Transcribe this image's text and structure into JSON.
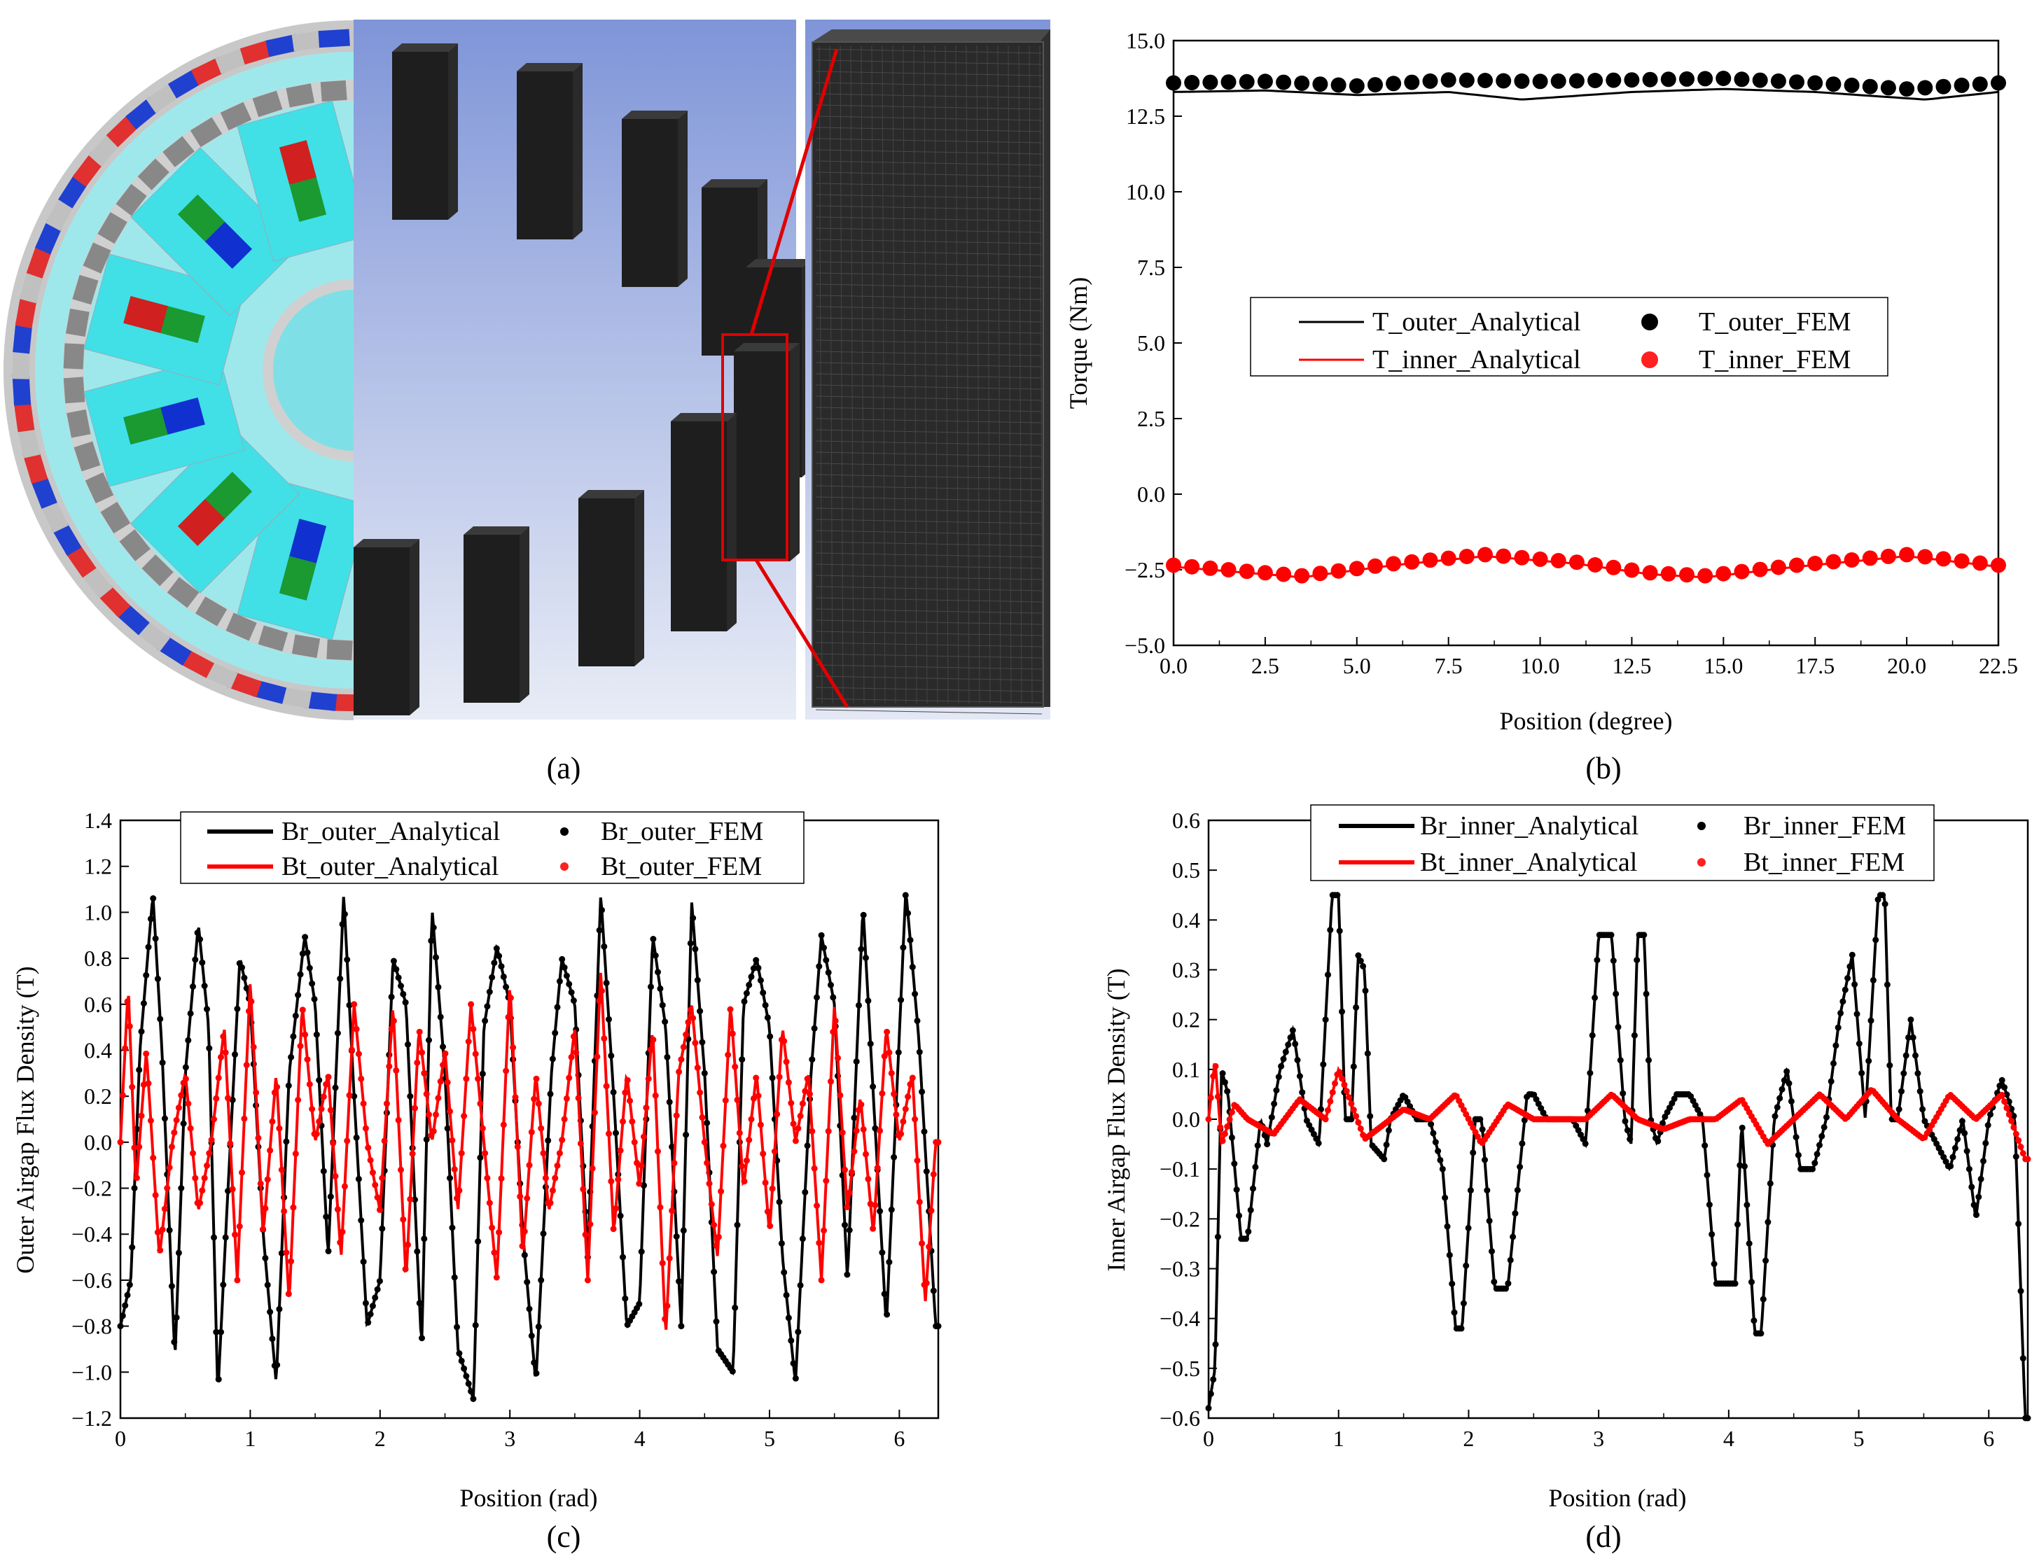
{
  "captions": [
    "(a)",
    "(b)",
    "(c)",
    "(d)"
  ],
  "colors": {
    "analytical_black": "#000000",
    "analytical_red": "#ff0000",
    "fem_black": "#000000",
    "fem_red": "#ff2020",
    "mesh_bg": "#8098d0",
    "stator_cyan": "#40e8e8",
    "mesh_gray": "#c8c8c8"
  },
  "chart_data": [
    {
      "id": "b",
      "type": "line",
      "caption": "(b)",
      "xlabel": "Position (degree)",
      "ylabel": "Torque (Nm)",
      "xlim": [
        0,
        22.5
      ],
      "ylim": [
        -5,
        15
      ],
      "xticks": [
        "0.0",
        "2.5",
        "5.0",
        "7.5",
        "10.0",
        "12.5",
        "15.0",
        "17.5",
        "20.0",
        "22.5"
      ],
      "yticks": [
        "-5.0",
        "-2.5",
        "0.0",
        "2.5",
        "5.0",
        "7.5",
        "10.0",
        "12.5",
        "15.0"
      ],
      "legend": [
        "T_outer_Analytical",
        "T_outer_FEM",
        "T_inner_Analytical",
        "T_inner_FEM"
      ],
      "series": [
        {
          "name": "T_outer_Analytical",
          "style": "line",
          "color": "#000000",
          "x": [
            0,
            2.5,
            5,
            7.5,
            9.5,
            12.5,
            15,
            17.5,
            20.5,
            22.5
          ],
          "values": [
            13.3,
            13.35,
            13.2,
            13.3,
            13.05,
            13.3,
            13.4,
            13.3,
            13.05,
            13.3
          ]
        },
        {
          "name": "T_outer_FEM",
          "style": "markers",
          "color": "#000000",
          "x": [
            0,
            2.5,
            5,
            7.5,
            10,
            12.5,
            15,
            17.5,
            20,
            22.5
          ],
          "values": [
            13.6,
            13.65,
            13.5,
            13.7,
            13.65,
            13.7,
            13.75,
            13.6,
            13.4,
            13.6
          ]
        },
        {
          "name": "T_inner_Analytical",
          "style": "line",
          "color": "#ff0000",
          "x": [
            0,
            1.5,
            3.5,
            6,
            8.5,
            11,
            13,
            14.5,
            17,
            20,
            22.5
          ],
          "values": [
            -2.4,
            -2.55,
            -2.75,
            -2.35,
            -2.05,
            -2.3,
            -2.65,
            -2.75,
            -2.4,
            -2.05,
            -2.4
          ]
        },
        {
          "name": "T_inner_FEM",
          "style": "markers",
          "color": "#ff0000",
          "x": [
            0,
            1.5,
            3.5,
            6,
            8.5,
            11,
            13,
            14.5,
            17,
            20,
            22.5
          ],
          "values": [
            -2.35,
            -2.5,
            -2.7,
            -2.3,
            -2.0,
            -2.25,
            -2.6,
            -2.7,
            -2.35,
            -2.0,
            -2.35
          ]
        }
      ]
    },
    {
      "id": "c",
      "type": "line",
      "caption": "(c)",
      "xlabel": "Position (rad)",
      "ylabel": "Outer Airgap Flux Density (T)",
      "xlim": [
        0,
        6.3
      ],
      "ylim": [
        -1.2,
        1.4
      ],
      "xticks": [
        "0",
        "1",
        "2",
        "3",
        "4",
        "5",
        "6"
      ],
      "yticks": [
        "-1.2",
        "-1.0",
        "-0.8",
        "-0.6",
        "-0.4",
        "-0.2",
        "0.0",
        "0.2",
        "0.4",
        "0.6",
        "0.8",
        "1.0",
        "1.2",
        "1.4"
      ],
      "legend": [
        "Br_outer_Analytical",
        "Br_outer_FEM",
        "Bt_outer_Analytical",
        "Bt_outer_FEM"
      ],
      "series": [
        {
          "name": "Br_outer_Analytical",
          "style": "line+markers",
          "color": "#000000",
          "x": [
            0,
            0.08,
            0.15,
            0.25,
            0.32,
            0.42,
            0.5,
            0.6,
            0.68,
            0.75,
            0.82,
            0.92,
            1.0,
            1.1,
            1.2,
            1.3,
            1.42,
            1.5,
            1.6,
            1.72,
            1.8,
            1.9,
            2.0,
            2.1,
            2.2,
            2.32,
            2.4,
            2.5,
            2.6,
            2.72,
            2.8,
            2.9,
            3.0,
            3.1,
            3.2,
            3.32,
            3.4,
            3.5,
            3.6,
            3.7,
            3.8,
            3.9,
            4.0,
            4.1,
            4.2,
            4.32,
            4.4,
            4.5,
            4.6,
            4.72,
            4.8,
            4.9,
            5.0,
            5.1,
            5.2,
            5.32,
            5.4,
            5.5,
            5.6,
            5.72,
            5.8,
            5.9,
            6.05,
            6.15,
            6.28
          ],
          "values": [
            -0.8,
            -0.6,
            0.4,
            1.08,
            0.4,
            -0.95,
            0.3,
            0.95,
            0.5,
            -1.1,
            -0.3,
            0.8,
            0.6,
            -0.4,
            -1.05,
            0.3,
            0.9,
            0.6,
            -0.5,
            1.08,
            0.2,
            -0.8,
            -0.6,
            0.8,
            0.6,
            -0.9,
            1.02,
            0.3,
            -0.9,
            -1.12,
            0.5,
            0.85,
            0.6,
            -0.4,
            -1.05,
            0.3,
            0.8,
            0.6,
            -0.5,
            1.08,
            0.2,
            -0.8,
            -0.7,
            0.9,
            0.5,
            -0.8,
            1.05,
            0.3,
            -0.9,
            -1.0,
            0.6,
            0.8,
            0.5,
            -0.5,
            -1.05,
            0.3,
            0.9,
            0.6,
            -0.6,
            1.03,
            0.2,
            -0.8,
            1.1,
            0.45,
            -0.8
          ]
        },
        {
          "name": "Bt_outer_Analytical",
          "style": "line+markers",
          "color": "#ff0000",
          "x": [
            0,
            0.06,
            0.12,
            0.2,
            0.3,
            0.4,
            0.5,
            0.6,
            0.7,
            0.8,
            0.9,
            1.0,
            1.1,
            1.2,
            1.3,
            1.4,
            1.5,
            1.6,
            1.7,
            1.8,
            1.9,
            2.0,
            2.1,
            2.2,
            2.3,
            2.4,
            2.5,
            2.6,
            2.7,
            2.8,
            2.9,
            3.0,
            3.1,
            3.2,
            3.3,
            3.4,
            3.5,
            3.6,
            3.7,
            3.8,
            3.9,
            4.0,
            4.1,
            4.2,
            4.3,
            4.4,
            4.5,
            4.6,
            4.7,
            4.8,
            4.9,
            5.0,
            5.1,
            5.2,
            5.3,
            5.4,
            5.5,
            5.6,
            5.7,
            5.8,
            5.9,
            6.0,
            6.1,
            6.2,
            6.28
          ],
          "values": [
            0.0,
            0.68,
            -0.2,
            0.4,
            -0.5,
            0.0,
            0.3,
            -0.3,
            0.0,
            0.5,
            -0.6,
            0.7,
            -0.4,
            0.3,
            -0.7,
            0.6,
            0.0,
            0.3,
            -0.5,
            0.6,
            0.0,
            -0.3,
            0.6,
            -0.6,
            0.5,
            0.0,
            0.4,
            -0.3,
            0.6,
            0.0,
            -0.6,
            0.7,
            -0.5,
            0.3,
            -0.3,
            0.0,
            0.5,
            -0.6,
            0.75,
            -0.4,
            0.3,
            -0.2,
            0.5,
            -0.85,
            0.3,
            0.6,
            0.0,
            -0.5,
            0.6,
            -0.2,
            0.3,
            -0.4,
            0.5,
            0.0,
            0.3,
            -0.6,
            0.6,
            -0.3,
            0.2,
            -0.4,
            0.5,
            0.0,
            0.3,
            -0.7,
            0.0
          ]
        }
      ]
    },
    {
      "id": "d",
      "type": "line",
      "caption": "(d)",
      "xlabel": "Position (rad)",
      "ylabel": "Inner Airgap Flux Density (T)",
      "xlim": [
        0,
        6.3
      ],
      "ylim": [
        -0.6,
        0.6
      ],
      "xticks": [
        "0",
        "1",
        "2",
        "3",
        "4",
        "5",
        "6"
      ],
      "yticks": [
        "-0.6",
        "-0.5",
        "-0.4",
        "-0.3",
        "-0.2",
        "-0.1",
        "0.0",
        "0.1",
        "0.2",
        "0.3",
        "0.4",
        "0.5",
        "0.6"
      ],
      "legend": [
        "Br_inner_Analytical",
        "Br_inner_FEM",
        "Bt_inner_Analytical",
        "Bt_inner_FEM"
      ],
      "series": [
        {
          "name": "Br_inner_Analytical",
          "style": "line+markers",
          "color": "#000000",
          "x": [
            0,
            0.05,
            0.1,
            0.15,
            0.25,
            0.3,
            0.4,
            0.45,
            0.55,
            0.65,
            0.75,
            0.85,
            0.95,
            1.0,
            1.05,
            1.1,
            1.15,
            1.2,
            1.25,
            1.35,
            1.4,
            1.5,
            1.6,
            1.7,
            1.8,
            1.9,
            1.95,
            2.05,
            2.1,
            2.2,
            2.3,
            2.45,
            2.5,
            2.6,
            2.8,
            2.9,
            3.0,
            3.1,
            3.2,
            3.25,
            3.3,
            3.35,
            3.4,
            3.45,
            3.5,
            3.6,
            3.7,
            3.8,
            3.9,
            4.05,
            4.1,
            4.2,
            4.25,
            4.35,
            4.45,
            4.55,
            4.65,
            4.75,
            4.85,
            4.95,
            5.05,
            5.15,
            5.2,
            5.25,
            5.3,
            5.4,
            5.5,
            5.6,
            5.7,
            5.8,
            5.9,
            6.0,
            6.1,
            6.2,
            6.28
          ],
          "values": [
            -0.58,
            -0.5,
            0.1,
            0.05,
            -0.24,
            -0.24,
            0.0,
            -0.05,
            0.1,
            0.18,
            0.0,
            -0.05,
            0.45,
            0.45,
            0.0,
            0.0,
            0.33,
            0.3,
            -0.05,
            -0.08,
            0.0,
            0.05,
            0.0,
            0.0,
            -0.1,
            -0.42,
            -0.42,
            0.0,
            0.0,
            -0.34,
            -0.34,
            0.05,
            0.05,
            0.0,
            0.0,
            -0.05,
            0.37,
            0.37,
            0.0,
            -0.05,
            0.37,
            0.37,
            0.0,
            -0.05,
            0.0,
            0.05,
            0.05,
            0.0,
            -0.33,
            -0.33,
            0.0,
            -0.43,
            -0.43,
            0.0,
            0.1,
            -0.1,
            -0.1,
            0.0,
            0.2,
            0.33,
            0.0,
            0.45,
            0.45,
            0.0,
            0.0,
            0.2,
            0.0,
            -0.05,
            -0.1,
            0.0,
            -0.2,
            0.0,
            0.08,
            0.0,
            -0.6
          ]
        },
        {
          "name": "Bt_inner_Analytical",
          "style": "line+markers",
          "color": "#ff0000",
          "x": [
            0,
            0.05,
            0.1,
            0.2,
            0.3,
            0.5,
            0.7,
            0.9,
            1.0,
            1.2,
            1.5,
            1.7,
            1.9,
            2.1,
            2.3,
            2.5,
            2.7,
            2.9,
            3.1,
            3.3,
            3.5,
            3.7,
            3.9,
            4.1,
            4.3,
            4.5,
            4.7,
            4.9,
            5.1,
            5.3,
            5.5,
            5.7,
            5.9,
            6.1,
            6.28
          ],
          "values": [
            0.0,
            0.12,
            -0.05,
            0.03,
            0.0,
            -0.03,
            0.04,
            0.0,
            0.1,
            -0.04,
            0.02,
            0.0,
            0.05,
            -0.05,
            0.03,
            0.0,
            0.0,
            0.0,
            0.05,
            0.0,
            -0.02,
            0.0,
            0.0,
            0.04,
            -0.05,
            0.0,
            0.05,
            0.0,
            0.06,
            0.0,
            -0.04,
            0.05,
            0.0,
            0.05,
            -0.08
          ]
        }
      ]
    }
  ]
}
